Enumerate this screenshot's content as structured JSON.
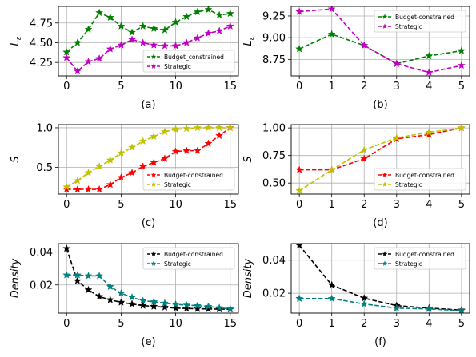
{
  "colors": {
    "green": "#008000",
    "magenta": "#c000c0",
    "red": "#ff0000",
    "yellow": "#c0c000",
    "black": "#000000",
    "teal": "#008080",
    "grid": "#b0b0b0"
  },
  "chart_data": [
    {
      "panel": "a",
      "type": "line",
      "caption": "(a)",
      "ylabel": "L",
      "ylabel_sub": "ε",
      "x": [
        0,
        1,
        2,
        3,
        4,
        5,
        6,
        7,
        8,
        9,
        10,
        11,
        12,
        13,
        14,
        15
      ],
      "xticks": [
        0,
        5,
        10,
        15
      ],
      "xlim": [
        -0.75,
        15.75
      ],
      "yticks": [
        4.25,
        4.5,
        4.75
      ],
      "ytick_labels": [
        "4.25",
        "4.50",
        "4.75"
      ],
      "ylim": [
        4.08,
        4.96
      ],
      "grid": true,
      "legend_position": "lower-right",
      "series": [
        {
          "name": "Budget_constrained",
          "color": "green",
          "marker": "star",
          "values": [
            4.38,
            4.5,
            4.67,
            4.88,
            4.82,
            4.71,
            4.63,
            4.71,
            4.68,
            4.66,
            4.76,
            4.83,
            4.89,
            4.92,
            4.85,
            4.87
          ]
        },
        {
          "name": "Strategic",
          "color": "magenta",
          "marker": "star",
          "values": [
            4.31,
            4.14,
            4.26,
            4.3,
            4.42,
            4.47,
            4.54,
            4.5,
            4.47,
            4.46,
            4.46,
            4.5,
            4.56,
            4.62,
            4.65,
            4.71
          ]
        }
      ]
    },
    {
      "panel": "b",
      "type": "line",
      "caption": "(b)",
      "ylabel": "L",
      "ylabel_sub": "ε",
      "x": [
        0,
        1,
        2,
        3,
        4,
        5
      ],
      "xticks": [
        0,
        1,
        2,
        3,
        4,
        5
      ],
      "xlim": [
        -0.25,
        5.25
      ],
      "yticks": [
        8.75,
        9.0,
        9.25
      ],
      "ytick_labels": [
        "8.75",
        "9.00",
        "9.25"
      ],
      "ylim": [
        8.56,
        9.36
      ],
      "grid": true,
      "legend_position": "top-right",
      "series": [
        {
          "name": "Budget-constrained",
          "color": "green",
          "marker": "star",
          "values": [
            8.87,
            9.04,
            8.91,
            8.7,
            8.79,
            8.85
          ]
        },
        {
          "name": "Strategic",
          "color": "magenta",
          "marker": "star",
          "values": [
            9.3,
            9.33,
            8.91,
            8.7,
            8.6,
            8.68
          ]
        }
      ]
    },
    {
      "panel": "c",
      "type": "line",
      "caption": "(c)",
      "ylabel": "S",
      "x": [
        0,
        1,
        2,
        3,
        4,
        5,
        6,
        7,
        8,
        9,
        10,
        11,
        12,
        13,
        14,
        15
      ],
      "xticks": [
        0,
        5,
        10,
        15
      ],
      "xlim": [
        -0.75,
        15.75
      ],
      "yticks": [
        0.5,
        1.0
      ],
      "ytick_labels": [
        "0.5",
        "1.0"
      ],
      "ylim": [
        0.16,
        1.04
      ],
      "grid": true,
      "legend_position": "lower-right",
      "series": [
        {
          "name": "Budget-constrained",
          "color": "red",
          "marker": "star",
          "values": [
            0.22,
            0.22,
            0.22,
            0.22,
            0.28,
            0.37,
            0.43,
            0.51,
            0.56,
            0.61,
            0.7,
            0.71,
            0.71,
            0.8,
            0.9,
            1.0
          ]
        },
        {
          "name": "Strategic",
          "color": "yellow",
          "marker": "star",
          "values": [
            0.25,
            0.33,
            0.43,
            0.51,
            0.59,
            0.68,
            0.75,
            0.83,
            0.89,
            0.95,
            0.98,
            0.99,
            1.0,
            1.0,
            1.0,
            1.0
          ]
        }
      ]
    },
    {
      "panel": "d",
      "type": "line",
      "caption": "(d)",
      "ylabel": "S",
      "x": [
        0,
        1,
        2,
        3,
        4,
        5
      ],
      "xticks": [
        0,
        1,
        2,
        3,
        4,
        5
      ],
      "xlim": [
        -0.25,
        5.25
      ],
      "yticks": [
        0.5,
        0.75,
        1.0
      ],
      "ytick_labels": [
        "0.50",
        "0.75",
        "1.00"
      ],
      "ylim": [
        0.4,
        1.03
      ],
      "grid": true,
      "legend_position": "lower-right",
      "series": [
        {
          "name": "Budget-constrained",
          "color": "red",
          "marker": "star",
          "values": [
            0.62,
            0.62,
            0.72,
            0.9,
            0.94,
            1.0
          ]
        },
        {
          "name": "Strategic",
          "color": "yellow",
          "marker": "star",
          "values": [
            0.43,
            0.62,
            0.8,
            0.91,
            0.96,
            1.0
          ]
        }
      ]
    },
    {
      "panel": "e",
      "type": "line",
      "caption": "(e)",
      "ylabel": "Density",
      "x": [
        0,
        1,
        2,
        3,
        4,
        5,
        6,
        7,
        8,
        9,
        10,
        11,
        12,
        13,
        14,
        15
      ],
      "xticks": [
        0,
        5,
        10,
        15
      ],
      "xlim": [
        -0.75,
        15.75
      ],
      "yticks": [
        0.02,
        0.04
      ],
      "ytick_labels": [
        "0.02",
        "0.04"
      ],
      "ylim": [
        0.003,
        0.045
      ],
      "grid": true,
      "legend_position": "top-right",
      "series": [
        {
          "name": "Budget-constrained",
          "color": "black",
          "marker": "star",
          "values": [
            0.042,
            0.0225,
            0.017,
            0.013,
            0.011,
            0.0095,
            0.0085,
            0.0075,
            0.007,
            0.0065,
            0.006,
            0.0058,
            0.0056,
            0.0055,
            0.0054,
            0.0053
          ]
        },
        {
          "name": "Strategic",
          "color": "teal",
          "marker": "star",
          "values": [
            0.026,
            0.026,
            0.0255,
            0.0255,
            0.019,
            0.015,
            0.0125,
            0.0105,
            0.0098,
            0.009,
            0.0083,
            0.0078,
            0.0075,
            0.007,
            0.0062,
            0.0055
          ]
        }
      ]
    },
    {
      "panel": "f",
      "type": "line",
      "caption": "(f)",
      "ylabel": "Density",
      "x": [
        0,
        1,
        2,
        3,
        4,
        5
      ],
      "xticks": [
        0,
        1,
        2,
        3,
        4,
        5
      ],
      "xlim": [
        -0.25,
        5.25
      ],
      "yticks": [
        0.02,
        0.04
      ],
      "ytick_labels": [
        "0.02",
        "0.04"
      ],
      "ylim": [
        0.008,
        0.05
      ],
      "grid": true,
      "legend_position": "top-right",
      "series": [
        {
          "name": "Budget-constrained",
          "color": "black",
          "marker": "star",
          "values": [
            0.049,
            0.025,
            0.017,
            0.0125,
            0.011,
            0.0098
          ]
        },
        {
          "name": "Strategic",
          "color": "teal",
          "marker": "star",
          "values": [
            0.0168,
            0.0168,
            0.0135,
            0.011,
            0.0105,
            0.0095
          ]
        }
      ]
    }
  ]
}
